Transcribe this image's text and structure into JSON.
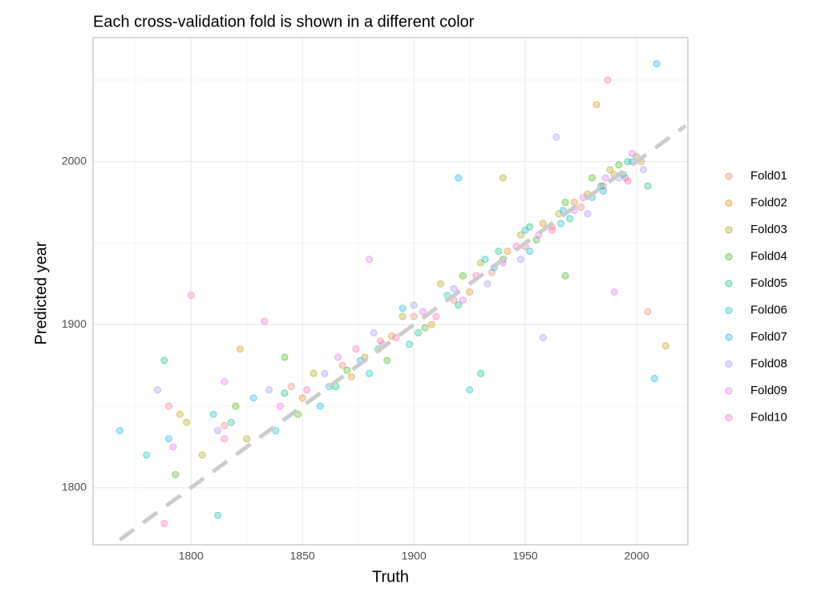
{
  "chart_data": {
    "type": "scatter",
    "subtitle": "Each cross-validation fold is shown in a different color",
    "x_label": "Truth",
    "y_label": "Predicted year",
    "xlim": [
      1756,
      2023
    ],
    "ylim": [
      1765,
      2076
    ],
    "xticks": [
      1800,
      1850,
      1900,
      1950,
      2000
    ],
    "yticks": [
      1800,
      1900,
      2000
    ],
    "xminor": [
      1775,
      1825,
      1875,
      1925,
      1975
    ],
    "yminor": [
      1850,
      1950,
      2050
    ],
    "grid": true,
    "legend": "right",
    "identity_line": {
      "from": 1768,
      "to": 2022,
      "color": "#cccccc"
    },
    "series": [
      {
        "name": "Fold01",
        "color": "#F8766D",
        "x": [
          1790,
          1815,
          1845,
          1868,
          1885,
          1900,
          1918,
          1935,
          1950,
          1962,
          1975,
          1985,
          1995,
          2005
        ],
        "values": [
          1850,
          1838,
          1862,
          1875,
          1890,
          1905,
          1915,
          1932,
          1948,
          1960,
          1972,
          1985,
          1990,
          1908
        ]
      },
      {
        "name": "Fold02",
        "color": "#D89000",
        "x": [
          1795,
          1822,
          1850,
          1872,
          1890,
          1908,
          1925,
          1942,
          1958,
          1972,
          1982,
          1990,
          2002,
          2013
        ],
        "values": [
          1845,
          1885,
          1855,
          1868,
          1893,
          1900,
          1920,
          1945,
          1962,
          1975,
          2035,
          1992,
          2000,
          1887
        ]
      },
      {
        "name": "Fold03",
        "color": "#A3A500",
        "x": [
          1798,
          1825,
          1855,
          1878,
          1895,
          1912,
          1930,
          1948,
          1965,
          1978,
          1988,
          2000,
          1805,
          1940
        ],
        "values": [
          1840,
          1830,
          1870,
          1880,
          1905,
          1925,
          1938,
          1955,
          1968,
          1980,
          1995,
          2003,
          1820,
          1990
        ]
      },
      {
        "name": "Fold04",
        "color": "#39B600",
        "x": [
          1793,
          1820,
          1848,
          1870,
          1888,
          1905,
          1922,
          1940,
          1955,
          1968,
          1980,
          1992,
          1968,
          1842
        ],
        "values": [
          1808,
          1850,
          1845,
          1872,
          1878,
          1898,
          1930,
          1940,
          1952,
          1975,
          1990,
          1998,
          1930,
          1880
        ]
      },
      {
        "name": "Fold05",
        "color": "#00BF7D",
        "x": [
          1788,
          1818,
          1842,
          1865,
          1884,
          1902,
          1920,
          1938,
          1952,
          1970,
          1984,
          1996,
          2005,
          1930
        ],
        "values": [
          1878,
          1840,
          1858,
          1862,
          1885,
          1895,
          1912,
          1945,
          1960,
          1965,
          1985,
          2000,
          1985,
          1870
        ]
      },
      {
        "name": "Fold06",
        "color": "#00BFC4",
        "x": [
          1780,
          1810,
          1838,
          1862,
          1880,
          1898,
          1915,
          1932,
          1950,
          1966,
          1980,
          1994,
          1812,
          1925
        ],
        "values": [
          1820,
          1845,
          1835,
          1862,
          1870,
          1888,
          1918,
          1940,
          1958,
          1962,
          1978,
          1992,
          1783,
          1860
        ]
      },
      {
        "name": "Fold07",
        "color": "#00B0F6",
        "x": [
          1768,
          1790,
          1828,
          1858,
          1876,
          1895,
          1920,
          1936,
          1952,
          1967,
          1985,
          1998,
          2009,
          2008
        ],
        "values": [
          1835,
          1830,
          1855,
          1850,
          1878,
          1910,
          1990,
          1935,
          1945,
          1970,
          1982,
          2000,
          2060,
          1867
        ]
      },
      {
        "name": "Fold08",
        "color": "#9590FF",
        "x": [
          1785,
          1812,
          1835,
          1860,
          1882,
          1900,
          1918,
          1933,
          1948,
          1964,
          1978,
          1992,
          2003,
          1958
        ],
        "values": [
          1860,
          1835,
          1860,
          1870,
          1895,
          1912,
          1922,
          1925,
          1940,
          2015,
          1968,
          1990,
          1995,
          1892
        ]
      },
      {
        "name": "Fold09",
        "color": "#E76BF3",
        "x": [
          1792,
          1815,
          1840,
          1866,
          1886,
          1904,
          1922,
          1940,
          1956,
          1972,
          1986,
          1998,
          1990,
          1880
        ],
        "values": [
          1825,
          1865,
          1850,
          1880,
          1888,
          1908,
          1915,
          1938,
          1955,
          1970,
          1990,
          2005,
          1920,
          1940
        ]
      },
      {
        "name": "Fold10",
        "color": "#FF62BC",
        "x": [
          1788,
          1800,
          1833,
          1852,
          1874,
          1892,
          1910,
          1928,
          1946,
          1962,
          1976,
          1987,
          1996,
          1815
        ],
        "values": [
          1778,
          1918,
          1902,
          1860,
          1885,
          1892,
          1905,
          1930,
          1948,
          1958,
          1978,
          2050,
          1988,
          1830
        ]
      }
    ]
  }
}
